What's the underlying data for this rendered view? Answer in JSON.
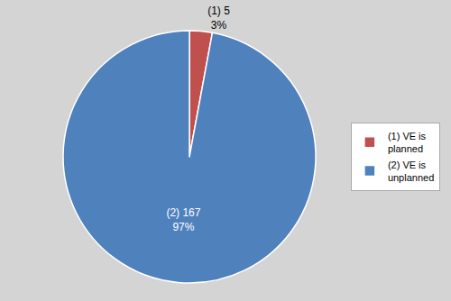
{
  "chart_data": {
    "type": "pie",
    "categories": [
      "(1) VE is\nplanned",
      "(2) VE is\nunplanned"
    ],
    "values": [
      5,
      167
    ],
    "value_labels": [
      "(1) 5\n3%",
      "(2) 167\n97%"
    ],
    "colors": [
      "#c0504d",
      "#4f81bd"
    ],
    "data_labels": true,
    "legend": "right"
  }
}
